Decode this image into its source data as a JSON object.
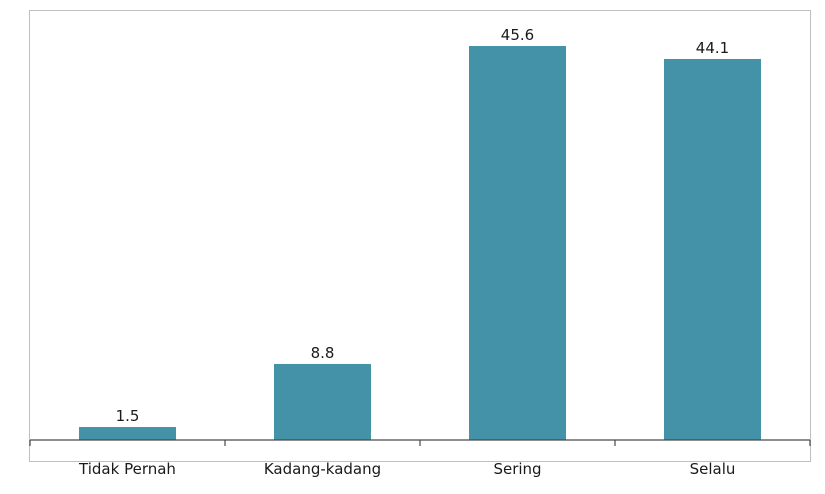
{
  "chart_data": {
    "type": "bar",
    "categories": [
      "Tidak Pernah",
      "Kadang-kadang",
      "Sering",
      "Selalu"
    ],
    "values": [
      1.5,
      8.8,
      45.6,
      44.1
    ],
    "data_labels": [
      "1.5",
      "8.8",
      "45.6",
      "44.1"
    ],
    "title": "",
    "xlabel": "",
    "ylabel": "",
    "ylim": [
      0,
      50
    ],
    "grid": false,
    "legend": "none",
    "bar_color": "#4392A8"
  }
}
